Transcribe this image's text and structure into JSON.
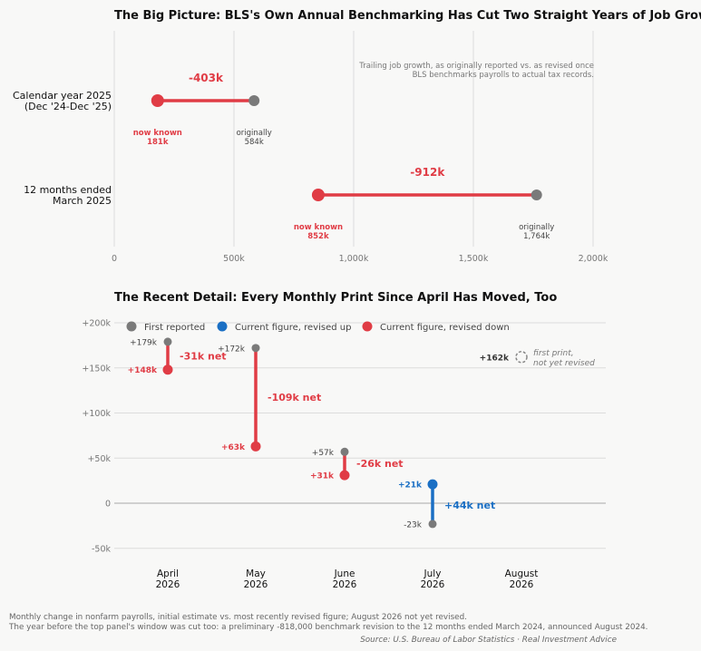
{
  "colors": {
    "initial": "#7a7a7a",
    "down": "#e03c45",
    "up": "#1a6fc4",
    "grid": "#dcdcdc",
    "background": "#f8f8f7"
  },
  "chart_data": [
    {
      "type": "dumbbell",
      "title": "The Big Picture: BLS's Own Annual Benchmarking Has Cut Two Straight Years of Job Growth",
      "annotation": "Trailing job growth, as originally reported vs. as revised once BLS benchmarks payrolls to actual tax records.",
      "xlim": [
        0,
        2000
      ],
      "x_ticks": [
        0,
        500,
        1000,
        1500,
        2000
      ],
      "x_tick_labels": [
        "0",
        "500k",
        "1,000k",
        "1,500k",
        "2,000k"
      ],
      "rows": [
        {
          "label_lines": [
            "Calendar year 2025",
            "(Dec '24-Dec '25)"
          ],
          "original": 584,
          "revised": 181,
          "delta_label": "-403k",
          "revised_label": [
            "now known",
            "181k"
          ],
          "original_label": [
            "originally",
            "584k"
          ]
        },
        {
          "label_lines": [
            "12 months ended",
            "March 2025"
          ],
          "original": 1764,
          "revised": 852,
          "delta_label": "-912k",
          "revised_label": [
            "now known",
            "852k"
          ],
          "original_label": [
            "originally",
            "1,764k"
          ]
        }
      ]
    },
    {
      "type": "dumbbell",
      "title": "The Recent Detail: Every Monthly Print Since April Has Moved, Too",
      "ylim": [
        -50,
        200
      ],
      "y_ticks": [
        -50,
        0,
        50,
        100,
        150,
        200
      ],
      "y_tick_labels": [
        "-50k",
        "0",
        "+50k",
        "+100k",
        "+150k",
        "+200k"
      ],
      "legend": [
        {
          "label": "First reported",
          "color": "#7a7a7a"
        },
        {
          "label": "Current figure, revised up",
          "color": "#1a6fc4"
        },
        {
          "label": "Current figure, revised down",
          "color": "#e03c45"
        }
      ],
      "months": [
        {
          "label": [
            "April",
            "2026"
          ],
          "first": 179,
          "current": 148,
          "first_label": "+179k",
          "current_label": "+148k",
          "net_label": "-31k net",
          "direction": "down"
        },
        {
          "label": [
            "May",
            "2026"
          ],
          "first": 172,
          "current": 63,
          "first_label": "+172k",
          "current_label": "+63k",
          "net_label": "-109k net",
          "direction": "down"
        },
        {
          "label": [
            "June",
            "2026"
          ],
          "first": 57,
          "current": 31,
          "first_label": "+57k",
          "current_label": "+31k",
          "net_label": "-26k net",
          "direction": "down"
        },
        {
          "label": [
            "July",
            "2026"
          ],
          "first": -23,
          "current": 21,
          "first_label": "-23k",
          "current_label": "+21k",
          "net_label": "+44k net",
          "direction": "up"
        },
        {
          "label": [
            "August",
            "2026"
          ],
          "first": 162,
          "current": null,
          "first_label": "+162k",
          "note": [
            "first print,",
            "not yet revised"
          ]
        }
      ]
    }
  ],
  "footnotes": {
    "line1": "Monthly change in nonfarm payrolls, initial estimate vs. most recently revised figure; August 2026 not yet revised.",
    "line2": "The year before the top panel's window was cut too: a preliminary -818,000 benchmark revision to the 12 months ended March 2024, announced August 2024.",
    "source": "Source: U.S. Bureau of Labor Statistics · Real Investment Advice"
  }
}
